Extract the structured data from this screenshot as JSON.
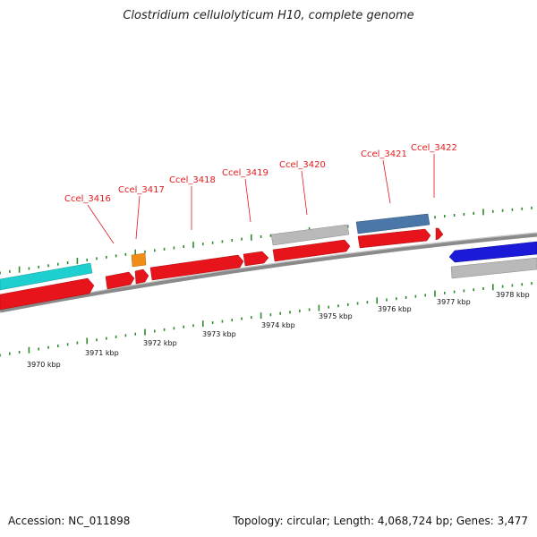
{
  "title": "Clostridium cellulolyticum H10, complete genome",
  "footer": {
    "accession": "Accession: NC_011898",
    "summary": "Topology: circular; Length: 4,068,724 bp; Genes: 3,477"
  },
  "colors": {
    "cds": "#e8141b",
    "cyan_feature": "#1ecfcf",
    "orange_feature": "#f28c18",
    "grey_feature": "#b9b9b9",
    "steelblue_feature": "#4a77a8",
    "blue_feature": "#1a1ad8",
    "backbone": "#8a8a8a",
    "tick": "#2e8b2e",
    "label": "#e41a1c"
  },
  "position_labels": [
    "3970 kbp",
    "3971 kbp",
    "3972 kbp",
    "3973 kbp",
    "3974 kbp",
    "3975 kbp",
    "3976 kbp",
    "3977 kbp",
    "3978 kbp"
  ],
  "gene_labels": [
    "Ccel_3416",
    "Ccel_3417",
    "Ccel_3418",
    "Ccel_3419",
    "Ccel_3420",
    "Ccel_3421",
    "Ccel_3422"
  ]
}
